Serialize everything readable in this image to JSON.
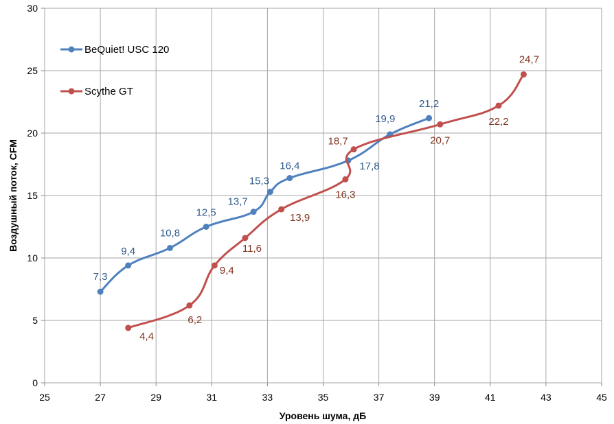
{
  "chart_data": {
    "type": "line",
    "title": "",
    "xlabel": "Уровень шума, дБ",
    "ylabel": "Воздушный поток, CFM",
    "xlim": [
      25,
      45
    ],
    "ylim": [
      0,
      30
    ],
    "xticks": [
      "25",
      "27",
      "29",
      "31",
      "33",
      "35",
      "37",
      "39",
      "41",
      "43",
      "45"
    ],
    "yticks": [
      "0",
      "5",
      "10",
      "15",
      "20",
      "25",
      "30"
    ],
    "grid": true,
    "legend_position": "top-left",
    "series": [
      {
        "name": "BeQuiet! USC 120",
        "color": "#4f81bd",
        "label_color": "#2f5a8a",
        "x": [
          27,
          28,
          29.5,
          30.8,
          32.5,
          33.1,
          33.8,
          35.9,
          37.4,
          38.8
        ],
        "y": [
          7.3,
          9.4,
          10.8,
          12.5,
          13.7,
          15.3,
          16.4,
          17.8,
          19.9,
          21.2
        ],
        "labels": [
          "7,3",
          "9,4",
          "10,8",
          "12,5",
          "13,7",
          "15,3",
          "16,4",
          "17,8",
          "19,9",
          "21,2"
        ]
      },
      {
        "name": "Scythe GT",
        "color": "#c0504d",
        "label_color": "#7f3420",
        "x": [
          28,
          30.2,
          31.1,
          32.2,
          33.5,
          35.8,
          36.1,
          39.2,
          41.3,
          42.2
        ],
        "y": [
          4.4,
          6.2,
          9.4,
          11.6,
          13.9,
          16.3,
          18.7,
          20.7,
          22.2,
          24.7
        ],
        "labels": [
          "4,4",
          "6,2",
          "9,4",
          "11,6",
          "13,9",
          "16,3",
          "18,7",
          "20,7",
          "22,2",
          "24,7"
        ]
      }
    ]
  }
}
